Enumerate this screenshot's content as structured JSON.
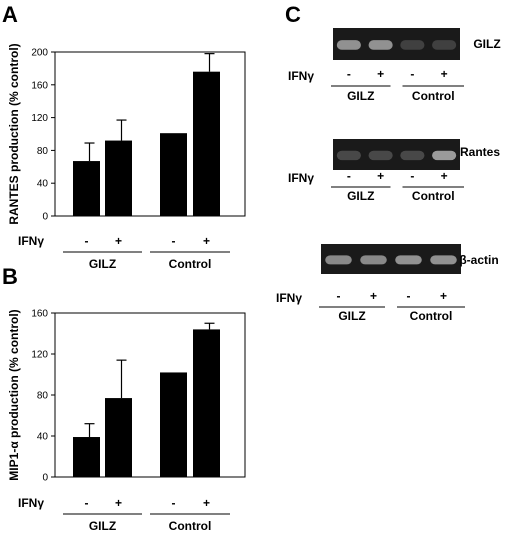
{
  "panels": {
    "A": {
      "letter": "A"
    },
    "B": {
      "letter": "B"
    },
    "C": {
      "letter": "C"
    }
  },
  "chart_data": [
    {
      "type": "bar",
      "panel": "A",
      "ylabel": "RANTES production (% control)",
      "ylim": [
        0,
        200
      ],
      "yticks": [
        0,
        40,
        80,
        120,
        160,
        200
      ],
      "categories": [
        "GILZ -",
        "GILZ +",
        "Control -",
        "Control +"
      ],
      "values": [
        67,
        92,
        101,
        176
      ],
      "errors": [
        22,
        25,
        0,
        22
      ],
      "treatment_label": "IFNγ",
      "treatment_signs": [
        "-",
        "+",
        "-",
        "+"
      ],
      "groups": [
        "GILZ",
        "Control"
      ]
    },
    {
      "type": "bar",
      "panel": "B",
      "ylabel": "MIP1-α production (% control)",
      "ylim": [
        0,
        160
      ],
      "yticks": [
        0,
        40,
        80,
        120,
        160
      ],
      "categories": [
        "GILZ -",
        "GILZ +",
        "Control -",
        "Control +"
      ],
      "values": [
        39,
        77,
        102,
        144
      ],
      "errors": [
        13,
        37,
        0,
        6
      ],
      "treatment_label": "IFNγ",
      "treatment_signs": [
        "-",
        "+",
        "-",
        "+"
      ],
      "groups": [
        "GILZ",
        "Control"
      ]
    }
  ],
  "gels": [
    {
      "target": "GILZ",
      "treatment_label": "IFNγ",
      "treatment_signs": [
        "-",
        "+",
        "-",
        "+"
      ],
      "groups": [
        "GILZ",
        "Control"
      ],
      "band_intensity": [
        0.55,
        0.55,
        0.05,
        0.05
      ]
    },
    {
      "target": "Rantes",
      "treatment_label": "IFNγ",
      "treatment_signs": [
        "-",
        "+",
        "-",
        "+"
      ],
      "groups": [
        "GILZ",
        "Control"
      ],
      "band_intensity": [
        0.1,
        0.1,
        0.1,
        0.6
      ]
    },
    {
      "target": "β-actin",
      "treatment_label": "IFNγ",
      "treatment_signs": [
        "-",
        "+",
        "-",
        "+"
      ],
      "groups": [
        "GILZ",
        "Control"
      ],
      "band_intensity": [
        0.5,
        0.5,
        0.55,
        0.55
      ]
    }
  ]
}
